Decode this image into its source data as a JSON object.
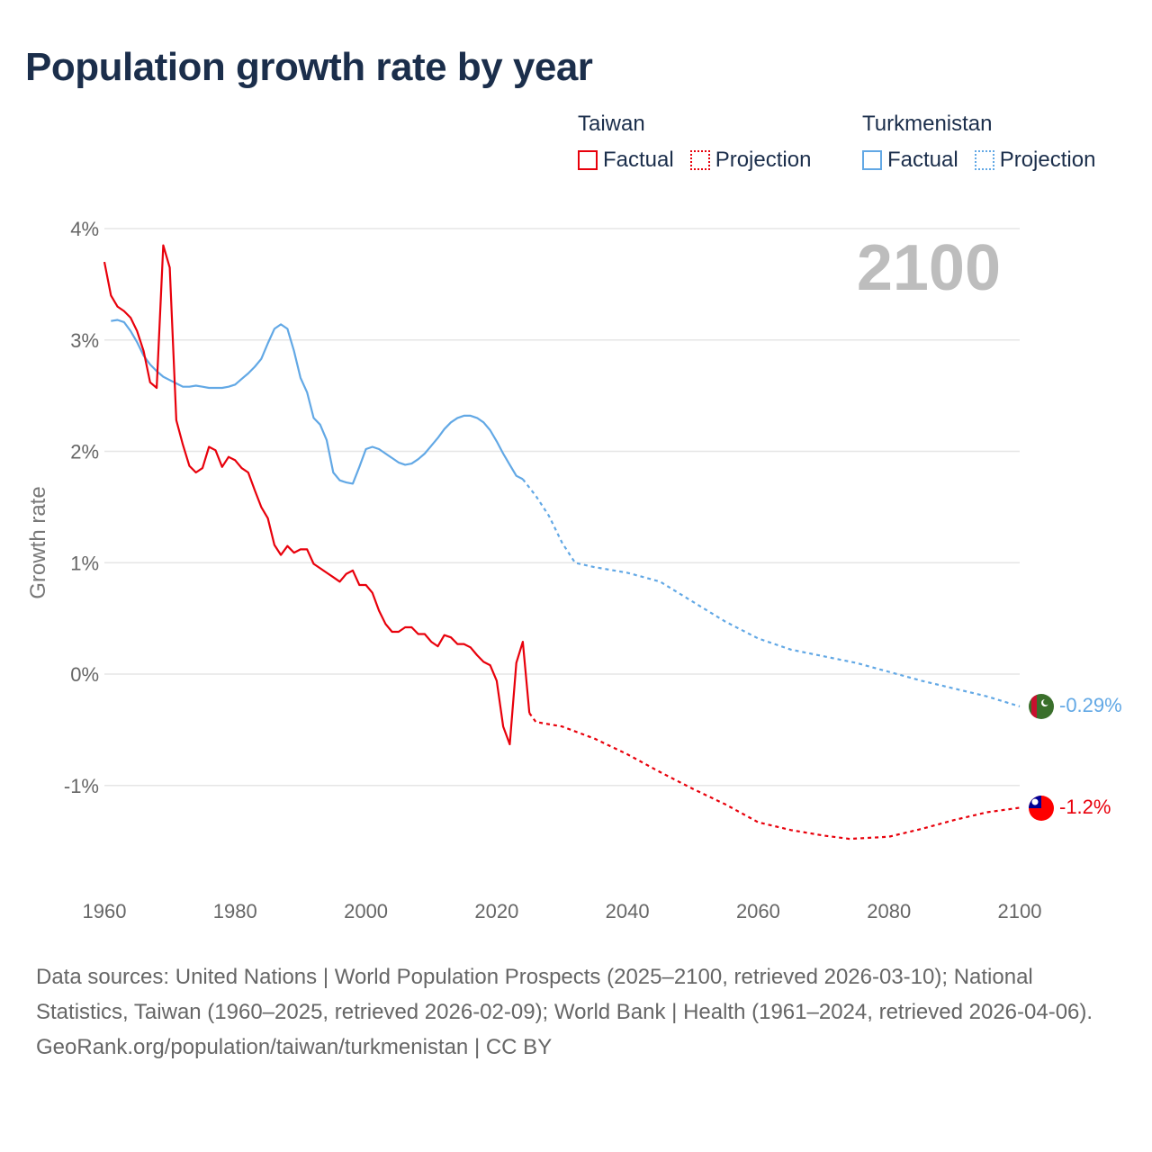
{
  "title": "Population growth rate by year",
  "legend": {
    "groups": [
      {
        "name": "Taiwan",
        "color": "#e8000b",
        "factual_label": "Factual",
        "projection_label": "Projection"
      },
      {
        "name": "Turkmenistan",
        "color": "#62a8e5",
        "factual_label": "Factual",
        "projection_label": "Projection"
      }
    ]
  },
  "year_display": "2100",
  "chart_data": {
    "type": "line",
    "title": "Population growth rate by year",
    "xlabel": "",
    "ylabel": "Growth rate",
    "xlim": [
      1960,
      2100
    ],
    "ylim": [
      -1.9,
      4.0
    ],
    "x_ticks": [
      1960,
      1980,
      2000,
      2020,
      2040,
      2060,
      2080,
      2100
    ],
    "y_ticks": [
      4,
      3,
      2,
      1,
      0,
      -1
    ],
    "y_tick_labels": [
      "4%",
      "3%",
      "2%",
      "1%",
      "0%",
      "-1%"
    ],
    "series": [
      {
        "name": "Taiwan",
        "color": "#e8000b",
        "end_label": "-1.2%",
        "factual": [
          [
            1960,
            3.7
          ],
          [
            1961,
            3.4
          ],
          [
            1962,
            3.3
          ],
          [
            1963,
            3.26
          ],
          [
            1964,
            3.2
          ],
          [
            1965,
            3.08
          ],
          [
            1966,
            2.9
          ],
          [
            1967,
            2.62
          ],
          [
            1968,
            2.57
          ],
          [
            1969,
            3.85
          ],
          [
            1970,
            3.65
          ],
          [
            1971,
            2.28
          ],
          [
            1972,
            2.06
          ],
          [
            1973,
            1.87
          ],
          [
            1974,
            1.81
          ],
          [
            1975,
            1.85
          ],
          [
            1976,
            2.04
          ],
          [
            1977,
            2.01
          ],
          [
            1978,
            1.86
          ],
          [
            1979,
            1.95
          ],
          [
            1980,
            1.92
          ],
          [
            1981,
            1.85
          ],
          [
            1982,
            1.81
          ],
          [
            1983,
            1.65
          ],
          [
            1984,
            1.5
          ],
          [
            1985,
            1.4
          ],
          [
            1986,
            1.16
          ],
          [
            1987,
            1.07
          ],
          [
            1988,
            1.15
          ],
          [
            1989,
            1.09
          ],
          [
            1990,
            1.12
          ],
          [
            1991,
            1.12
          ],
          [
            1992,
            0.99
          ],
          [
            1993,
            0.95
          ],
          [
            1994,
            0.91
          ],
          [
            1995,
            0.87
          ],
          [
            1996,
            0.83
          ],
          [
            1997,
            0.9
          ],
          [
            1998,
            0.93
          ],
          [
            1999,
            0.8
          ],
          [
            2000,
            0.8
          ],
          [
            2001,
            0.73
          ],
          [
            2002,
            0.57
          ],
          [
            2003,
            0.45
          ],
          [
            2004,
            0.38
          ],
          [
            2005,
            0.38
          ],
          [
            2006,
            0.42
          ],
          [
            2007,
            0.42
          ],
          [
            2008,
            0.36
          ],
          [
            2009,
            0.36
          ],
          [
            2010,
            0.29
          ],
          [
            2011,
            0.25
          ],
          [
            2012,
            0.35
          ],
          [
            2013,
            0.33
          ],
          [
            2014,
            0.27
          ],
          [
            2015,
            0.27
          ],
          [
            2016,
            0.24
          ],
          [
            2017,
            0.17
          ],
          [
            2018,
            0.11
          ],
          [
            2019,
            0.08
          ],
          [
            2020,
            -0.06
          ],
          [
            2021,
            -0.47
          ],
          [
            2022,
            -0.63
          ],
          [
            2023,
            0.1
          ],
          [
            2024,
            0.29
          ],
          [
            2025,
            -0.35
          ]
        ],
        "projection": [
          [
            2025,
            -0.35
          ],
          [
            2026,
            -0.43
          ],
          [
            2030,
            -0.47
          ],
          [
            2035,
            -0.58
          ],
          [
            2040,
            -0.72
          ],
          [
            2045,
            -0.88
          ],
          [
            2050,
            -1.03
          ],
          [
            2055,
            -1.17
          ],
          [
            2060,
            -1.33
          ],
          [
            2065,
            -1.4
          ],
          [
            2070,
            -1.45
          ],
          [
            2074,
            -1.48
          ],
          [
            2080,
            -1.46
          ],
          [
            2085,
            -1.39
          ],
          [
            2090,
            -1.31
          ],
          [
            2095,
            -1.24
          ],
          [
            2100,
            -1.2
          ]
        ]
      },
      {
        "name": "Turkmenistan",
        "color": "#62a8e5",
        "end_label": "-0.29%",
        "factual": [
          [
            1961,
            3.17
          ],
          [
            1962,
            3.18
          ],
          [
            1963,
            3.16
          ],
          [
            1964,
            3.08
          ],
          [
            1965,
            2.98
          ],
          [
            1966,
            2.86
          ],
          [
            1967,
            2.78
          ],
          [
            1968,
            2.72
          ],
          [
            1969,
            2.67
          ],
          [
            1970,
            2.64
          ],
          [
            1971,
            2.61
          ],
          [
            1972,
            2.58
          ],
          [
            1973,
            2.58
          ],
          [
            1974,
            2.59
          ],
          [
            1975,
            2.58
          ],
          [
            1976,
            2.57
          ],
          [
            1977,
            2.57
          ],
          [
            1978,
            2.57
          ],
          [
            1979,
            2.58
          ],
          [
            1980,
            2.6
          ],
          [
            1981,
            2.65
          ],
          [
            1982,
            2.7
          ],
          [
            1983,
            2.76
          ],
          [
            1984,
            2.83
          ],
          [
            1985,
            2.97
          ],
          [
            1986,
            3.1
          ],
          [
            1987,
            3.14
          ],
          [
            1988,
            3.1
          ],
          [
            1989,
            2.9
          ],
          [
            1990,
            2.66
          ],
          [
            1991,
            2.53
          ],
          [
            1992,
            2.3
          ],
          [
            1993,
            2.24
          ],
          [
            1994,
            2.1
          ],
          [
            1995,
            1.81
          ],
          [
            1996,
            1.74
          ],
          [
            1997,
            1.72
          ],
          [
            1998,
            1.71
          ],
          [
            1999,
            1.86
          ],
          [
            2000,
            2.02
          ],
          [
            2001,
            2.04
          ],
          [
            2002,
            2.02
          ],
          [
            2003,
            1.98
          ],
          [
            2004,
            1.94
          ],
          [
            2005,
            1.9
          ],
          [
            2006,
            1.88
          ],
          [
            2007,
            1.89
          ],
          [
            2008,
            1.93
          ],
          [
            2009,
            1.98
          ],
          [
            2010,
            2.05
          ],
          [
            2011,
            2.12
          ],
          [
            2012,
            2.2
          ],
          [
            2013,
            2.26
          ],
          [
            2014,
            2.3
          ],
          [
            2015,
            2.32
          ],
          [
            2016,
            2.32
          ],
          [
            2017,
            2.3
          ],
          [
            2018,
            2.26
          ],
          [
            2019,
            2.19
          ],
          [
            2020,
            2.09
          ],
          [
            2021,
            1.98
          ],
          [
            2022,
            1.88
          ],
          [
            2023,
            1.78
          ],
          [
            2024,
            1.75
          ]
        ],
        "projection": [
          [
            2024,
            1.75
          ],
          [
            2026,
            1.6
          ],
          [
            2028,
            1.42
          ],
          [
            2030,
            1.18
          ],
          [
            2032,
            1.0
          ],
          [
            2035,
            0.96
          ],
          [
            2040,
            0.91
          ],
          [
            2045,
            0.83
          ],
          [
            2050,
            0.65
          ],
          [
            2055,
            0.47
          ],
          [
            2060,
            0.32
          ],
          [
            2065,
            0.22
          ],
          [
            2070,
            0.16
          ],
          [
            2075,
            0.1
          ],
          [
            2080,
            0.02
          ],
          [
            2085,
            -0.06
          ],
          [
            2090,
            -0.13
          ],
          [
            2095,
            -0.2
          ],
          [
            2100,
            -0.29
          ]
        ]
      }
    ]
  },
  "footer": {
    "sources": "Data sources: United Nations | World Population Prospects (2025–2100, retrieved 2026-03-10); National Statistics, Taiwan (1960–2025, retrieved 2026-02-09); World Bank | Health (1961–2024, retrieved 2026-04-06).",
    "attribution": "GeoRank.org/population/taiwan/turkmenistan | CC BY"
  }
}
